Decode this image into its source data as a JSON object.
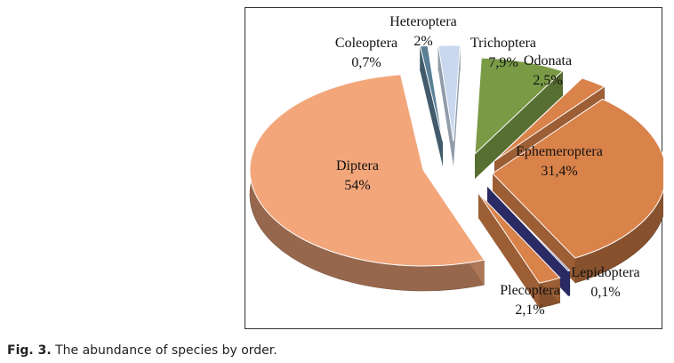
{
  "chart_data": {
    "type": "pie",
    "style": "3d-exploded",
    "title": "",
    "slices": [
      {
        "name": "Heteroptera",
        "pct_label": "2%",
        "value": 2.0,
        "color": "#c9d8ee"
      },
      {
        "name": "Trichoptera",
        "pct_label": "7,9%",
        "value": 7.9,
        "color": "#7a9a45"
      },
      {
        "name": "Odonata",
        "pct_label": "2,5%",
        "value": 2.5,
        "color": "#d9824a"
      },
      {
        "name": "Ephemeroptera",
        "pct_label": "31,4%",
        "value": 31.4,
        "color": "#d9824a"
      },
      {
        "name": "Lepidoptera",
        "pct_label": "0,1%",
        "value": 0.1,
        "color": "#3a3a8c"
      },
      {
        "name": "Plecoptera",
        "pct_label": "2,1%",
        "value": 2.1,
        "color": "#d9824a"
      },
      {
        "name": "Diptera",
        "pct_label": "54%",
        "value": 54.0,
        "color": "#f2a67a"
      },
      {
        "name": "Coleoptera",
        "pct_label": "0,7%",
        "value": 0.7,
        "color": "#5a7f96"
      }
    ]
  },
  "caption": {
    "label": "Fig. 3.",
    "text": " The abundance of species by order."
  }
}
